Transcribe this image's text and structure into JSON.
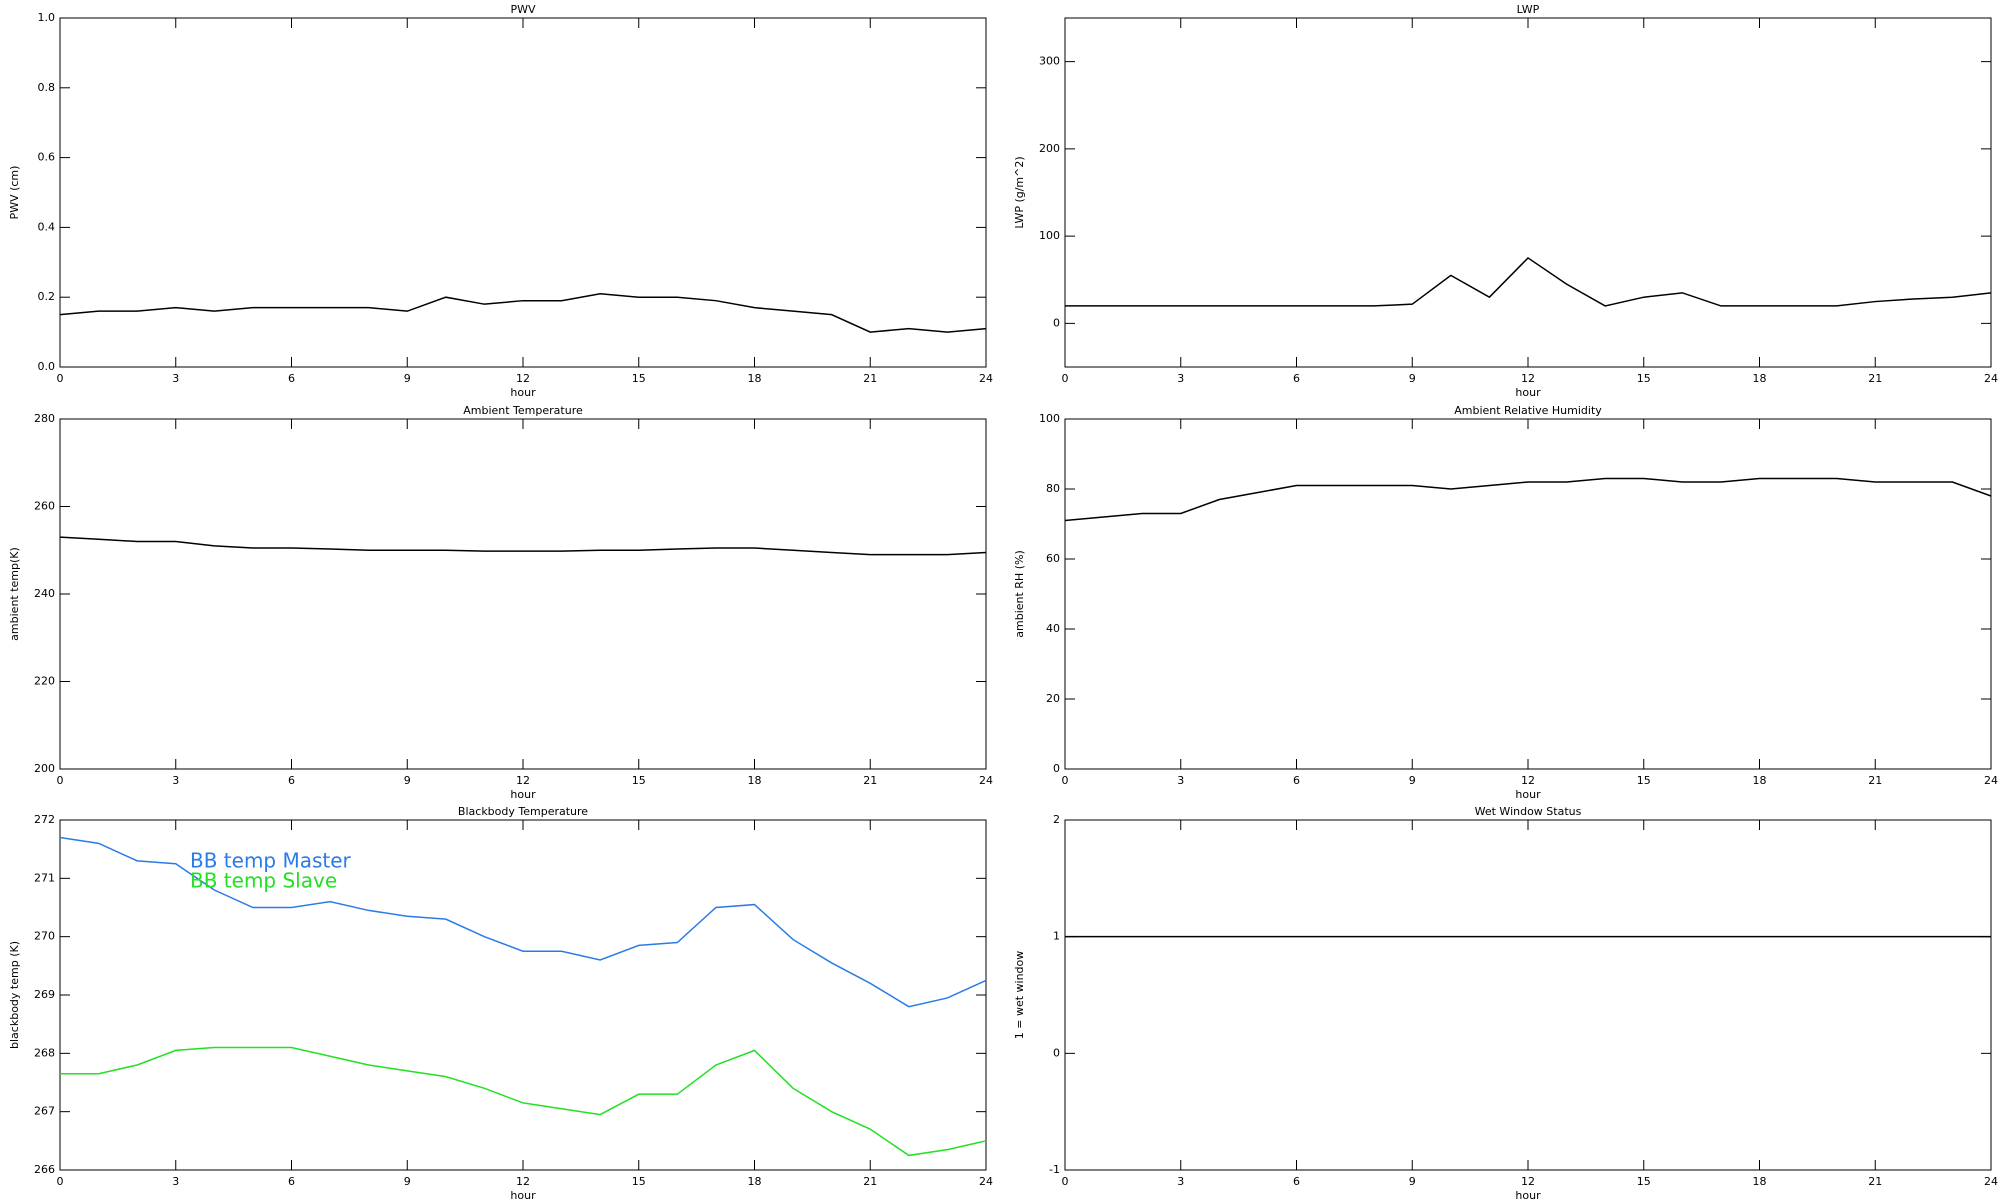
{
  "chart_data": [
    {
      "type": "line",
      "title": "PWV",
      "xlabel": "hour",
      "ylabel": "PWV (cm)",
      "x": [
        0,
        1,
        2,
        3,
        4,
        5,
        6,
        7,
        8,
        9,
        10,
        11,
        12,
        13,
        14,
        15,
        16,
        17,
        18,
        19,
        20,
        21,
        22,
        23,
        24
      ],
      "series": [
        {
          "color": "#000000",
          "values": [
            0.15,
            0.16,
            0.16,
            0.17,
            0.16,
            0.17,
            0.17,
            0.17,
            0.17,
            0.16,
            0.2,
            0.18,
            0.19,
            0.19,
            0.21,
            0.2,
            0.2,
            0.19,
            0.17,
            0.16,
            0.15,
            0.1,
            0.11,
            0.1,
            0.11
          ]
        }
      ],
      "xlim": [
        0,
        24
      ],
      "xticks": [
        0,
        3,
        6,
        9,
        12,
        15,
        18,
        21,
        24
      ],
      "ylim": [
        0,
        1
      ],
      "yticks": [
        {
          "value": 0,
          "label": "0.0"
        },
        0.2,
        0.4,
        0.6,
        0.8,
        {
          "value": 1,
          "label": "1.0"
        }
      ]
    },
    {
      "type": "line",
      "title": "LWP",
      "xlabel": "hour",
      "ylabel": "LWP (g/m^2)",
      "x": [
        0,
        1,
        2,
        3,
        4,
        5,
        6,
        7,
        8,
        9,
        10,
        11,
        12,
        13,
        14,
        15,
        16,
        17,
        18,
        19,
        20,
        21,
        22,
        23,
        24
      ],
      "series": [
        {
          "color": "#000000",
          "values": [
            20,
            20,
            20,
            20,
            20,
            20,
            20,
            20,
            20,
            22,
            55,
            30,
            75,
            45,
            20,
            30,
            35,
            20,
            20,
            20,
            20,
            25,
            28,
            30,
            35
          ]
        }
      ],
      "xlim": [
        0,
        24
      ],
      "xticks": [
        0,
        3,
        6,
        9,
        12,
        15,
        18,
        21,
        24
      ],
      "ylim": [
        -50,
        350
      ],
      "yticks": [
        0,
        100,
        200,
        300
      ]
    },
    {
      "type": "line",
      "title": "Ambient Temperature",
      "xlabel": "hour",
      "ylabel": "ambient temp(K)",
      "x": [
        0,
        1,
        2,
        3,
        4,
        5,
        6,
        7,
        8,
        9,
        10,
        11,
        12,
        13,
        14,
        15,
        16,
        17,
        18,
        19,
        20,
        21,
        22,
        23,
        24
      ],
      "series": [
        {
          "color": "#000000",
          "values": [
            253,
            252.5,
            252,
            252,
            251,
            250.5,
            250.5,
            250.3,
            250,
            250,
            250,
            249.8,
            249.8,
            249.8,
            250,
            250,
            250.3,
            250.5,
            250.5,
            250,
            249.5,
            249,
            249,
            249,
            249.5
          ]
        }
      ],
      "xlim": [
        0,
        24
      ],
      "xticks": [
        0,
        3,
        6,
        9,
        12,
        15,
        18,
        21,
        24
      ],
      "ylim": [
        200,
        280
      ],
      "yticks": [
        200,
        220,
        240,
        260,
        280
      ]
    },
    {
      "type": "line",
      "title": "Ambient Relative Humidity",
      "xlabel": "hour",
      "ylabel": "ambient RH (%)",
      "x": [
        0,
        1,
        2,
        3,
        4,
        5,
        6,
        7,
        8,
        9,
        10,
        11,
        12,
        13,
        14,
        15,
        16,
        17,
        18,
        19,
        20,
        21,
        22,
        23,
        24
      ],
      "series": [
        {
          "color": "#000000",
          "values": [
            71,
            72,
            73,
            73,
            77,
            79,
            81,
            81,
            81,
            81,
            80,
            81,
            82,
            82,
            83,
            83,
            82,
            82,
            83,
            83,
            83,
            82,
            82,
            82,
            78
          ]
        }
      ],
      "xlim": [
        0,
        24
      ],
      "xticks": [
        0,
        3,
        6,
        9,
        12,
        15,
        18,
        21,
        24
      ],
      "ylim": [
        0,
        100
      ],
      "yticks": [
        0,
        20,
        40,
        60,
        80,
        100
      ]
    },
    {
      "type": "line",
      "title": "Blackbody Temperature",
      "xlabel": "hour",
      "ylabel": "blackbody temp (K)",
      "x": [
        0,
        1,
        2,
        3,
        4,
        5,
        6,
        7,
        8,
        9,
        10,
        11,
        12,
        13,
        14,
        15,
        16,
        17,
        18,
        19,
        20,
        21,
        22,
        23,
        24
      ],
      "series": [
        {
          "name": "BB temp Master",
          "color": "#2a7be8",
          "values": [
            271.7,
            271.6,
            271.3,
            271.25,
            270.8,
            270.5,
            270.5,
            270.6,
            270.45,
            270.35,
            270.3,
            270.0,
            269.75,
            269.75,
            269.6,
            269.85,
            269.9,
            270.5,
            270.55,
            269.95,
            269.55,
            269.2,
            268.8,
            268.95,
            269.25
          ]
        },
        {
          "name": "BB temp Slave",
          "color": "#22e022",
          "values": [
            267.65,
            267.65,
            267.8,
            268.05,
            268.1,
            268.1,
            268.1,
            267.95,
            267.8,
            267.7,
            267.6,
            267.4,
            267.15,
            267.05,
            266.95,
            267.3,
            267.3,
            267.8,
            268.05,
            267.4,
            267.0,
            266.7,
            266.25,
            266.35,
            266.5
          ]
        }
      ],
      "legend": "upper left",
      "xlim": [
        0,
        24
      ],
      "xticks": [
        0,
        3,
        6,
        9,
        12,
        15,
        18,
        21,
        24
      ],
      "ylim": [
        266,
        272
      ],
      "yticks": [
        266,
        267,
        268,
        269,
        270,
        271,
        272
      ]
    },
    {
      "type": "line",
      "title": "Wet Window Status",
      "xlabel": "hour",
      "ylabel": "1 = wet window",
      "x": [
        0,
        24
      ],
      "series": [
        {
          "color": "#000000",
          "values": [
            1,
            1
          ]
        }
      ],
      "xlim": [
        0,
        24
      ],
      "xticks": [
        0,
        3,
        6,
        9,
        12,
        15,
        18,
        21,
        24
      ],
      "ylim": [
        -1,
        2
      ],
      "yticks": [
        -1,
        0,
        1,
        2
      ]
    }
  ]
}
